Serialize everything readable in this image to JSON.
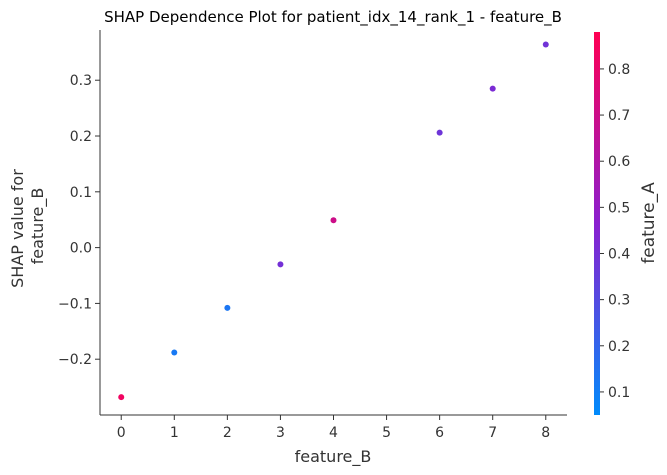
{
  "chart_data": {
    "type": "scatter",
    "title": "SHAP Dependence Plot for patient_idx_14_rank_1 - feature_B",
    "xlabel": "feature_B",
    "ylabel_lines": [
      "SHAP value for",
      "feature_B"
    ],
    "xlim": [
      -0.4,
      8.4
    ],
    "ylim": [
      -0.3,
      0.39
    ],
    "xticks": [
      0,
      1,
      2,
      3,
      4,
      5,
      6,
      7,
      8
    ],
    "xtick_labels": [
      "0",
      "1",
      "2",
      "3",
      "4",
      "5",
      "6",
      "7",
      "8"
    ],
    "yticks": [
      -0.2,
      -0.1,
      0.0,
      0.1,
      0.2,
      0.3
    ],
    "ytick_labels": [
      "−0.2",
      "−0.1",
      "0.0",
      "0.1",
      "0.2",
      "0.3"
    ],
    "points": [
      {
        "x": 0,
        "y": -0.268,
        "color_value": 0.83
      },
      {
        "x": 1,
        "y": -0.188,
        "color_value": 0.12
      },
      {
        "x": 2,
        "y": -0.108,
        "color_value": 0.13
      },
      {
        "x": 3,
        "y": -0.03,
        "color_value": 0.4
      },
      {
        "x": 4,
        "y": 0.049,
        "color_value": 0.7
      },
      {
        "x": 6,
        "y": 0.206,
        "color_value": 0.38
      },
      {
        "x": 7,
        "y": 0.285,
        "color_value": 0.42
      },
      {
        "x": 8,
        "y": 0.364,
        "color_value": 0.39
      }
    ],
    "colorbar": {
      "label": "feature_A",
      "range": [
        0.05,
        0.88
      ],
      "ticks": [
        0.1,
        0.2,
        0.3,
        0.4,
        0.5,
        0.6,
        0.7,
        0.8
      ],
      "tick_labels": [
        "0.1",
        "0.2",
        "0.3",
        "0.4",
        "0.5",
        "0.6",
        "0.7",
        "0.8"
      ],
      "color_low": "#008bfb",
      "color_mid": "#8a1fcf",
      "color_high": "#ff0052"
    },
    "grid": false,
    "legend": "none"
  }
}
